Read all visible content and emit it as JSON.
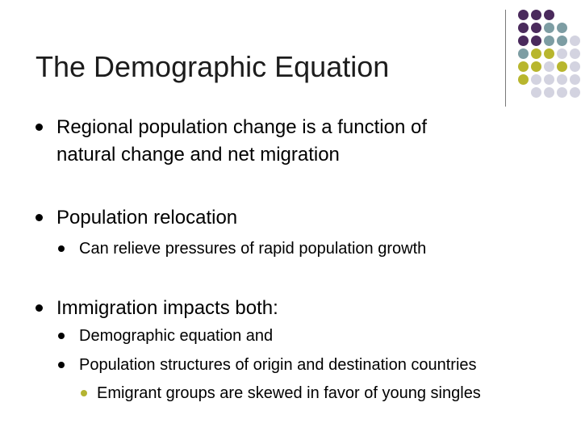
{
  "slide": {
    "title": "The Demographic Equation",
    "bullets": [
      {
        "level": 1,
        "text": "Regional population change is a function of"
      },
      {
        "level": 1,
        "text": "natural change and net migration"
      },
      {
        "level": 1,
        "text": "Population relocation"
      },
      {
        "level": 2,
        "text": "Can relieve pressures of rapid population growth"
      },
      {
        "level": 1,
        "text": "Immigration impacts both:"
      },
      {
        "level": 2,
        "text": "Demographic equation and"
      },
      {
        "level": 2,
        "text": "Population structures of origin and destination countries"
      },
      {
        "level": 3,
        "text": "Emigrant groups are skewed in favor of young singles"
      }
    ]
  },
  "decoration": {
    "colors": {
      "purple": "#4a2a5c",
      "teal": "#7d9da3",
      "olive": "#b8b62e",
      "lavender": "#d3d3e0"
    }
  }
}
